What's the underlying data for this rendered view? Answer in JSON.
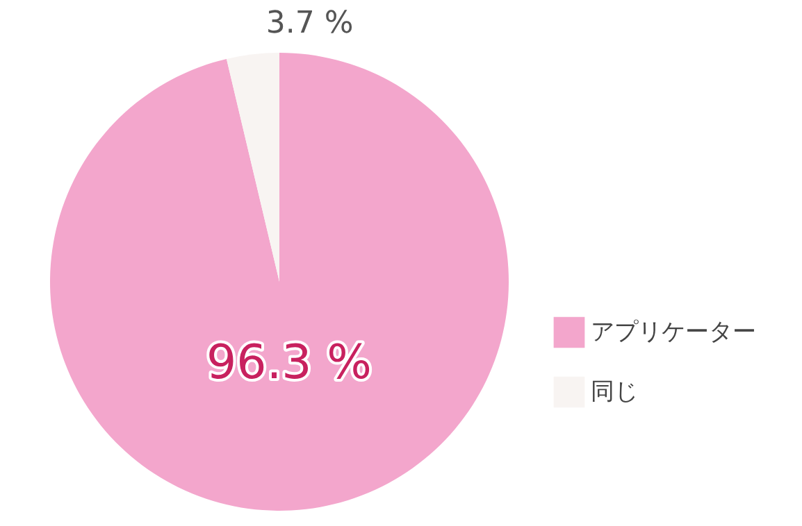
{
  "chart_data": {
    "type": "pie",
    "categories": [
      "アプリケーター",
      "同じ"
    ],
    "values": [
      96.3,
      3.7
    ],
    "colors": [
      "#f3a6cc",
      "#f8f4f2"
    ],
    "value_labels": [
      "96.3 %",
      "3.7 %"
    ],
    "legend": "right"
  }
}
